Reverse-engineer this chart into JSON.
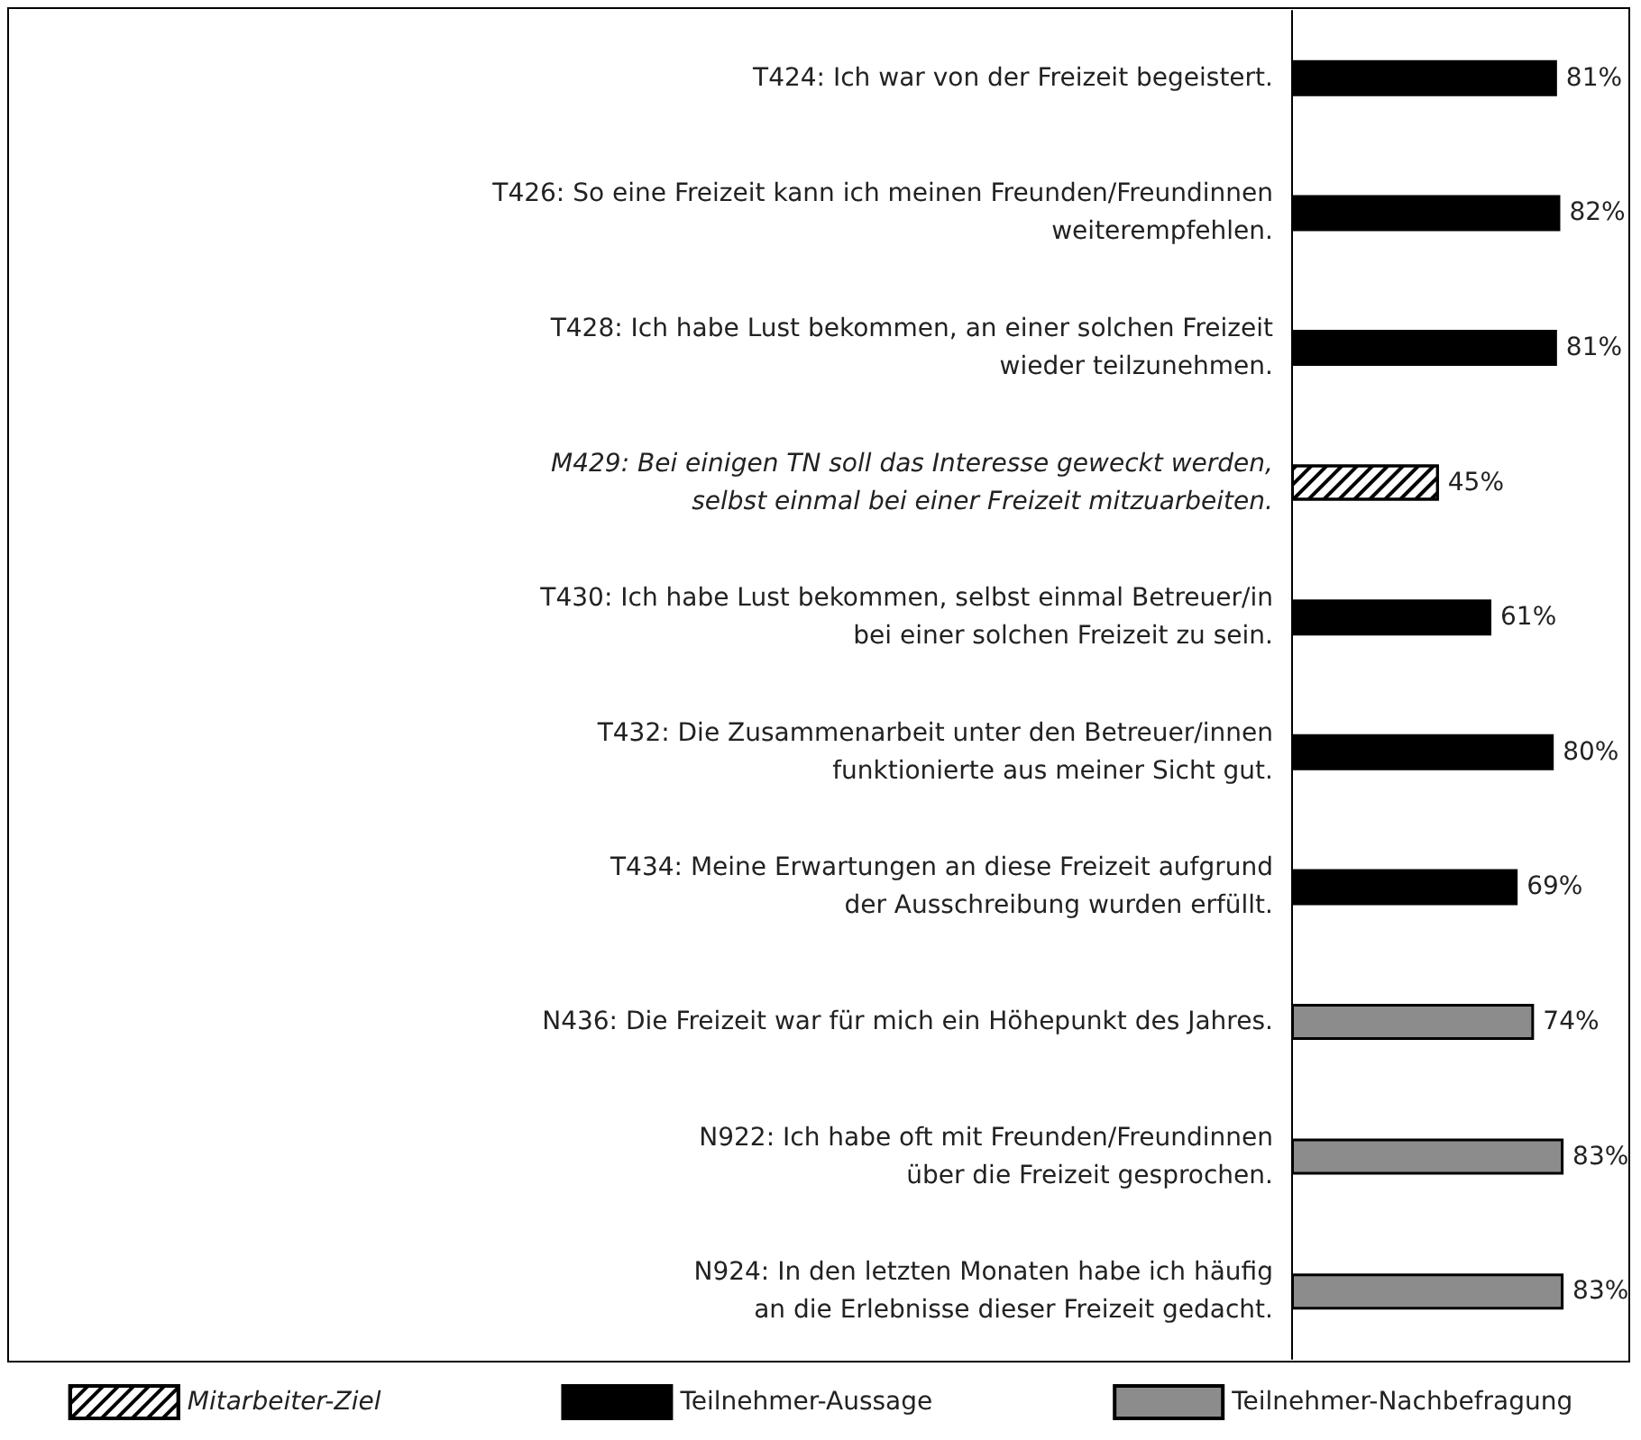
{
  "chart_data": {
    "type": "bar",
    "orientation": "horizontal",
    "stacked": true,
    "legend": "bottom",
    "categories": [
      "T424: Ich war von der Freizeit begeistert.",
      "T426: So eine Freizeit kann ich meinen Freunden/Freundinnen\nweiterempfehlen.",
      "T428: Ich habe Lust bekommen, an einer solchen Freizeit\nwieder teilzunehmen.",
      "M429: Bei einigen TN soll das Interesse geweckt werden,\nselbst einmal bei einer Freizeit mitzuarbeiten.",
      "T430: Ich habe Lust bekommen, selbst einmal Betreuer/in\nbei einer solchen Freizeit zu sein.",
      "T432: Die Zusammenarbeit unter den Betreuer/innen\nfunktionierte aus meiner Sicht gut.",
      "T434: Meine Erwartungen an diese Freizeit aufgrund\nder Ausschreibung wurden erfüllt.",
      "N436: Die Freizeit war für mich ein Höhepunkt des Jahres.",
      "N922: Ich habe oft mit Freunden/Freundinnen\nüber die Freizeit gesprochen.",
      "N924: In den letzten Monaten habe ich häufig\nan die Erlebnisse dieser Freizeit gedacht."
    ],
    "series": [
      {
        "name": "Mitarbeiter-Ziel",
        "color": "#000000",
        "values": [
          null,
          null,
          null,
          45,
          null,
          null,
          null,
          null,
          null,
          null
        ],
        "value_labels": [
          null,
          null,
          null,
          "45%",
          null,
          null,
          null,
          null,
          null,
          null
        ]
      },
      {
        "name": "Teilnehmer-Aussage",
        "color": "#000000",
        "values": [
          81,
          82,
          81,
          null,
          61,
          80,
          69,
          null,
          null,
          null
        ],
        "value_labels": [
          "81%",
          "82%",
          "81%",
          null,
          "61%",
          "80%",
          "69%",
          null,
          null,
          null
        ]
      },
      {
        "name": "Teilnehmer-Nachbefragung",
        "color": "#8c8c8c",
        "values": [
          null,
          null,
          null,
          null,
          null,
          null,
          null,
          74,
          83,
          83
        ],
        "value_labels": [
          null,
          null,
          null,
          null,
          null,
          null,
          null,
          "74%",
          "83%",
          "83%"
        ]
      }
    ]
  }
}
